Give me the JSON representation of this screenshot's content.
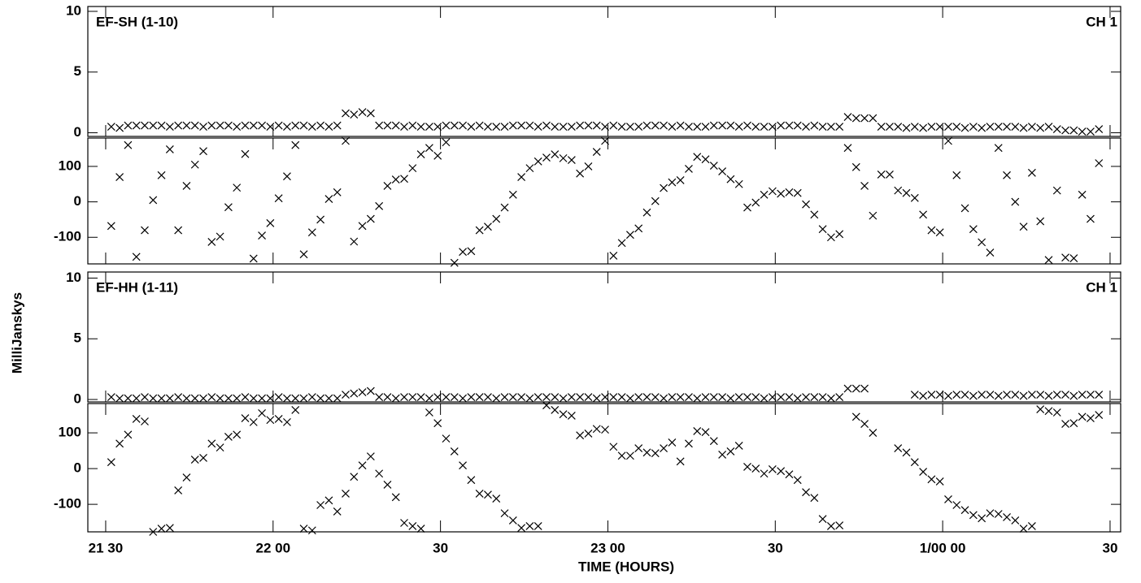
{
  "chart_data": {
    "type": "scatter",
    "xlabel": "TIME (HOURS)",
    "ylabel": "MilliJanskys",
    "xlim": [
      26.8,
      211.9
    ],
    "xticks": [
      {
        "value": 30,
        "label": "21 30"
      },
      {
        "value": 60,
        "label": "22 00"
      },
      {
        "value": 90,
        "label": "30"
      },
      {
        "value": 120,
        "label": "23 00"
      },
      {
        "value": 150,
        "label": "30"
      },
      {
        "value": 180,
        "label": "1/00 00"
      },
      {
        "value": 210,
        "label": "30"
      }
    ],
    "x": [
      31,
      32.5,
      34,
      35.5,
      37,
      38.5,
      40,
      41.5,
      43,
      44.5,
      46,
      47.5,
      49,
      50.5,
      52,
      53.5,
      55,
      56.5,
      58,
      59.5,
      61,
      62.5,
      64,
      65.5,
      67,
      68.5,
      70,
      71.5,
      73,
      74.5,
      76,
      77.5,
      79,
      80.5,
      82,
      83.5,
      85,
      86.5,
      88,
      89.5,
      91,
      92.5,
      94,
      95.5,
      97,
      98.5,
      100,
      101.5,
      103,
      104.5,
      106,
      107.5,
      109,
      110.5,
      112,
      113.5,
      115,
      116.5,
      118,
      119.5,
      121,
      122.5,
      124,
      125.5,
      127,
      128.5,
      130,
      131.5,
      133,
      134.5,
      136,
      137.5,
      139,
      140.5,
      142,
      143.5,
      145,
      146.5,
      148,
      149.5,
      151,
      152.5,
      154,
      155.5,
      157,
      158.5,
      160,
      161.5,
      163,
      164.5,
      166,
      167.5,
      169,
      170.5,
      172,
      173.5,
      175,
      176.5,
      178,
      179.5,
      181,
      182.5,
      184,
      185.5,
      187,
      188.5,
      190,
      191.5,
      193,
      194.5,
      196,
      197.5,
      199,
      200.5,
      202,
      203.5,
      205,
      206.5,
      208
    ],
    "panels": [
      {
        "title": "EF-SH (1-10)",
        "channel": "CH 1",
        "ylim": [
          -0.3,
          10.4
        ],
        "yticks": [
          0,
          5,
          10
        ],
        "values": [
          0.5,
          0.4,
          0.6,
          0.6,
          0.6,
          0.6,
          0.6,
          0.5,
          0.6,
          0.6,
          0.6,
          0.5,
          0.6,
          0.6,
          0.6,
          0.5,
          0.6,
          0.6,
          0.6,
          0.5,
          0.6,
          0.5,
          0.6,
          0.6,
          0.5,
          0.6,
          0.5,
          0.6,
          1.6,
          1.5,
          1.7,
          1.6,
          0.6,
          0.6,
          0.6,
          0.5,
          0.6,
          0.5,
          0.5,
          0.5,
          0.6,
          0.6,
          0.6,
          0.5,
          0.6,
          0.5,
          0.5,
          0.5,
          0.6,
          0.6,
          0.6,
          0.5,
          0.6,
          0.5,
          0.5,
          0.5,
          0.6,
          0.6,
          0.6,
          0.5,
          0.6,
          0.5,
          0.5,
          0.5,
          0.6,
          0.6,
          0.6,
          0.5,
          0.6,
          0.5,
          0.5,
          0.5,
          0.6,
          0.6,
          0.6,
          0.5,
          0.6,
          0.5,
          0.5,
          0.5,
          0.6,
          0.6,
          0.6,
          0.5,
          0.6,
          0.5,
          0.5,
          0.5,
          1.3,
          1.2,
          1.2,
          1.2,
          0.5,
          0.5,
          0.5,
          0.4,
          0.5,
          0.4,
          0.5,
          0.5,
          0.5,
          0.5,
          0.4,
          0.5,
          0.4,
          0.5,
          0.5,
          0.5,
          0.5,
          0.4,
          0.5,
          0.4,
          0.5,
          0.3,
          0.2,
          0.2,
          0.1,
          0.1,
          0.3
        ]
      },
      {
        "ylim": [
          -175,
          180
        ],
        "yticks": [
          -100,
          0,
          100
        ],
        "values": [
          -68,
          70,
          160,
          -155,
          -80,
          5,
          75,
          148,
          -80,
          45,
          105,
          143,
          -113,
          -98,
          -15,
          40,
          135,
          -160,
          -95,
          -60,
          10,
          72,
          160,
          -148,
          -86,
          -50,
          8,
          27,
          172,
          -112,
          -68,
          -48,
          -12,
          45,
          63,
          65,
          95,
          134,
          152,
          130,
          168,
          -172,
          -141,
          -139,
          -80,
          -70,
          -48,
          -16,
          20,
          70,
          95,
          114,
          125,
          134,
          123,
          118,
          80,
          100,
          141,
          172,
          -152,
          -116,
          -93,
          -75,
          -30,
          2,
          39,
          55,
          61,
          93,
          127,
          120,
          102,
          86,
          64,
          50,
          -16,
          -2,
          20,
          30,
          23,
          27,
          25,
          -7,
          -36,
          -77,
          -100,
          -91,
          152,
          98,
          45,
          -39,
          77,
          77,
          32,
          25,
          11,
          -36,
          -80,
          -86,
          172,
          75,
          -18,
          -77,
          -114,
          -143,
          152,
          75,
          0,
          -70,
          82,
          -55,
          -164,
          32,
          -157,
          -159,
          20,
          -48,
          109
        ]
      },
      {
        "title": "EF-HH (1-11)",
        "channel": "CH 1",
        "ylim": [
          -0.2,
          10.5
        ],
        "yticks": [
          0,
          5,
          10
        ],
        "values": [
          0.2,
          0.1,
          0.1,
          0.1,
          0.2,
          0.1,
          0.1,
          0.1,
          0.2,
          0.1,
          0.1,
          0.1,
          0.2,
          0.1,
          0.1,
          0.1,
          0.2,
          0.1,
          0.1,
          0.1,
          0.2,
          0.1,
          0.1,
          0.1,
          0.2,
          0.1,
          0.1,
          0.1,
          0.4,
          0.5,
          0.6,
          0.7,
          0.2,
          0.2,
          0.1,
          0.2,
          0.2,
          0.2,
          0.1,
          0.2,
          0.2,
          0.2,
          0.1,
          0.2,
          0.2,
          0.2,
          0.1,
          0.2,
          0.2,
          0.2,
          0.1,
          0.2,
          0.2,
          0.2,
          0.1,
          0.2,
          0.2,
          0.2,
          0.1,
          0.2,
          0.2,
          0.2,
          0.1,
          0.2,
          0.2,
          0.2,
          0.1,
          0.2,
          0.2,
          0.2,
          0.1,
          0.2,
          0.2,
          0.2,
          0.1,
          0.2,
          0.2,
          0.2,
          0.1,
          0.2,
          0.2,
          0.2,
          0.1,
          0.2,
          0.2,
          0.2,
          0.1,
          0.2,
          0.9,
          0.9,
          0.9,
          null,
          null,
          null,
          null,
          null,
          0.4,
          0.3,
          0.4,
          0.4,
          0.3,
          0.4,
          0.4,
          0.3,
          0.4,
          0.4,
          0.3,
          0.4,
          0.4,
          0.3,
          0.4,
          0.4,
          0.3,
          0.4,
          0.4,
          0.3,
          0.4,
          0.4,
          0.4
        ]
      },
      {
        "ylim": [
          -177,
          182
        ],
        "yticks": [
          -100,
          0,
          100
        ],
        "values": [
          18,
          70,
          95,
          139,
          132,
          -177,
          -168,
          -166,
          -61,
          -25,
          25,
          30,
          70,
          59,
          89,
          95,
          141,
          130,
          155,
          136,
          139,
          130,
          164,
          -168,
          -173,
          -102,
          -89,
          -120,
          -70,
          -23,
          9,
          34,
          -14,
          -45,
          -80,
          -152,
          -161,
          -168,
          157,
          127,
          84,
          48,
          9,
          -32,
          -70,
          -73,
          -84,
          -125,
          -145,
          -166,
          -161,
          -161,
          177,
          164,
          152,
          148,
          93,
          98,
          111,
          109,
          61,
          36,
          36,
          57,
          45,
          43,
          57,
          73,
          20,
          70,
          105,
          102,
          77,
          39,
          48,
          64,
          5,
          0,
          -14,
          -2,
          -7,
          -16,
          -32,
          -66,
          -82,
          -141,
          -161,
          -159,
          null,
          145,
          125,
          100,
          null,
          null,
          57,
          45,
          18,
          -9,
          -30,
          -36,
          -86,
          -102,
          -116,
          -130,
          -139,
          -125,
          -127,
          -136,
          -145,
          -168,
          -161,
          166,
          161,
          157,
          125,
          127,
          145,
          141,
          150
        ]
      }
    ]
  }
}
